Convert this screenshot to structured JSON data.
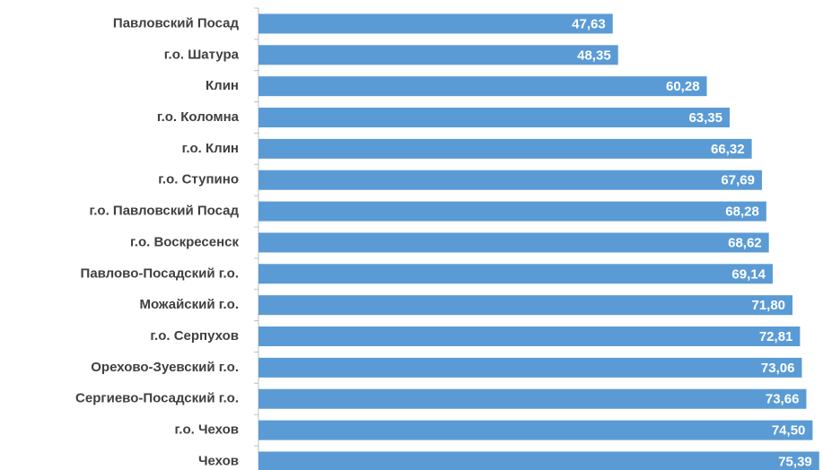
{
  "chart_data": {
    "type": "hbar",
    "categories": [
      "Павловский Посад",
      "г.о. Шатура",
      "Клин",
      "г.о. Коломна",
      "г.о. Клин",
      "г.о. Ступино",
      "г.о. Павловский Посад",
      "г.о. Воскресенск",
      "Павлово-Посадский г.о.",
      "Можайский г.о.",
      "г.о. Серпухов",
      "Орехово-Зуевский г.о.",
      "Сергиево-Посадский г.о.",
      "г.о. Чехов",
      "Чехов"
    ],
    "values": [
      47.63,
      48.35,
      60.28,
      63.35,
      66.32,
      67.69,
      68.28,
      68.62,
      69.14,
      71.8,
      72.81,
      73.06,
      73.66,
      74.5,
      75.39
    ],
    "value_labels": [
      "47,63",
      "48,35",
      "60,28",
      "63,35",
      "66,32",
      "67,69",
      "68,28",
      "68,62",
      "69,14",
      "71,80",
      "72,81",
      "73,06",
      "73,66",
      "74,50",
      "75,39"
    ],
    "color": "#5b9bd5",
    "xlim": [
      0,
      75.9
    ]
  }
}
